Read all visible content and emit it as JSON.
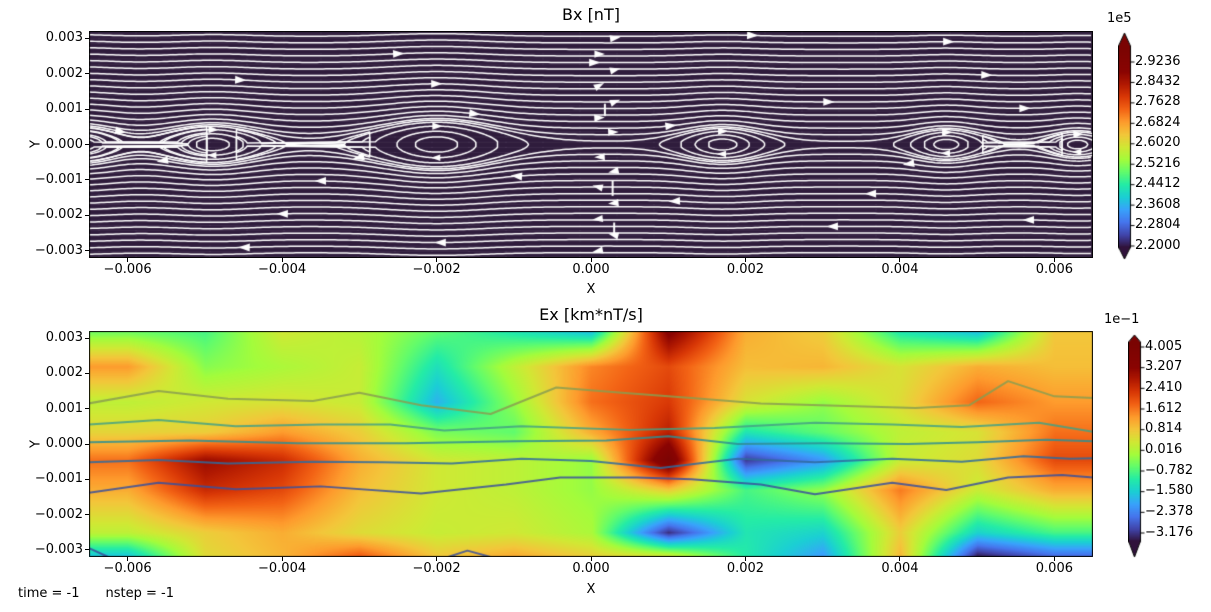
{
  "figure": {
    "background": "#ffffff"
  },
  "footer": {
    "time_label": "time = -1",
    "nstep_label": "nstep = -1"
  },
  "panels": [
    {
      "id": "bx",
      "title": "Bx [nT]",
      "xlabel": "X",
      "ylabel": "Y",
      "xtick_labels": [
        "−0.006",
        "−0.004",
        "−0.002",
        "0.000",
        "0.002",
        "0.004",
        "0.006"
      ],
      "ytick_labels": [
        "0.003",
        "0.002",
        "0.001",
        "0.000",
        "−0.001",
        "−0.002",
        "−0.003"
      ],
      "colorbar": {
        "exponent": "1e5",
        "tick_labels": [
          "2.9236",
          "2.8432",
          "2.7628",
          "2.6824",
          "2.6020",
          "2.5216",
          "2.4412",
          "2.3608",
          "2.2804",
          "2.2000"
        ],
        "extend": "both"
      }
    },
    {
      "id": "ex",
      "title": "Ex [km*nT/s]",
      "xlabel": "X",
      "ylabel": "Y",
      "xtick_labels": [
        "−0.006",
        "−0.004",
        "−0.002",
        "0.000",
        "0.002",
        "0.004",
        "0.006"
      ],
      "ytick_labels": [
        "0.003",
        "0.002",
        "0.001",
        "0.000",
        "−0.001",
        "−0.002",
        "−0.003"
      ],
      "colorbar": {
        "exponent": "1e−1",
        "tick_labels": [
          "4.005",
          "3.207",
          "2.410",
          "1.612",
          "0.814",
          "0.016",
          "−0.782",
          "−1.580",
          "−2.378",
          "−3.176"
        ],
        "extend": "both"
      }
    }
  ],
  "chart_data": [
    {
      "type": "streamline",
      "title": "Bx [nT]",
      "xlabel": "X",
      "ylabel": "Y",
      "xlim": [
        -0.0065,
        0.0065
      ],
      "ylim": [
        -0.0032,
        0.0032
      ],
      "xticks": [
        -0.006,
        -0.004,
        -0.002,
        0.0,
        0.002,
        0.004,
        0.006
      ],
      "yticks": [
        0.003,
        0.002,
        0.001,
        0.0,
        -0.001,
        -0.002,
        -0.003
      ],
      "colorbar": {
        "scale": "1e5",
        "ticks": [
          2.9236,
          2.8432,
          2.7628,
          2.6824,
          2.602,
          2.5216,
          2.4412,
          2.3608,
          2.2804,
          2.2
        ],
        "cmap": "turbo",
        "extend": "both"
      },
      "background_color": "#2f1c3c",
      "line_color": "#ffffff",
      "description": "Harris-sheet magnetic island chain along y=0; field lines horizontal far from the sheet, arrows point +x above the sheet and -x below; vertical chain of arrow artifacts near x=0.0002",
      "islands_units": "data (axis) units",
      "islands": [
        {
          "x": -0.0066,
          "half_width": 0.0012,
          "half_height": 0.00052
        },
        {
          "x": -0.0049,
          "half_width": 0.0015,
          "half_height": 0.00055
        },
        {
          "x": -0.002,
          "half_width": 0.0019,
          "half_height": 0.00068
        },
        {
          "x": 0.0017,
          "half_width": 0.0013,
          "half_height": 0.00049
        },
        {
          "x": 0.0046,
          "half_width": 0.0011,
          "half_height": 0.00045
        },
        {
          "x": 0.0063,
          "half_width": 0.0009,
          "half_height": 0.00038
        }
      ]
    },
    {
      "type": "heatmap",
      "title": "Ex [km*nT/s]",
      "xlabel": "X",
      "ylabel": "Y",
      "xlim": [
        -0.0065,
        0.0065
      ],
      "ylim": [
        -0.0032,
        0.0032
      ],
      "xticks": [
        -0.006,
        -0.004,
        -0.002,
        0.0,
        0.002,
        0.004,
        0.006
      ],
      "yticks": [
        0.003,
        0.002,
        0.001,
        0.0,
        -0.001,
        -0.002,
        -0.003
      ],
      "colorbar": {
        "scale": "1e-1",
        "ticks": [
          4.005,
          3.207,
          2.41,
          1.612,
          0.814,
          0.016,
          -0.782,
          -1.58,
          -2.378,
          -3.176
        ],
        "cmap": "turbo",
        "extend": "both"
      },
      "value_units": "1e-1 km*nT/s",
      "vmin": -3.575,
      "vmax": 4.404,
      "grid_units": "1e-3 (axis units x1000)",
      "grid_x": [
        -6,
        -5,
        -4,
        -3,
        -2,
        -1,
        0,
        1,
        2,
        3,
        4,
        5,
        6
      ],
      "grid_y": [
        3.2,
        2.2,
        1.2,
        0.35,
        -0.45,
        -1.3,
        -2.5,
        -3.2
      ],
      "values": [
        [
          -0.5,
          -0.8,
          0.4,
          0.1,
          -0.6,
          -1.2,
          -1.8,
          3.6,
          1.2,
          0.8,
          -1.2,
          -1.8,
          0.9
        ],
        [
          1.4,
          -0.3,
          0.0,
          0.3,
          -1.3,
          0.2,
          1.6,
          2.2,
          1.0,
          1.1,
          0.5,
          1.2,
          1.0
        ],
        [
          0.2,
          0.4,
          0.5,
          0.3,
          -1.9,
          -0.2,
          1.8,
          2.4,
          0.5,
          -0.2,
          0.6,
          1.9,
          1.4
        ],
        [
          0.7,
          0.8,
          1.4,
          0.8,
          -0.4,
          -0.6,
          1.2,
          2.8,
          -1.2,
          -0.6,
          0.2,
          0.5,
          1.8
        ],
        [
          1.8,
          3.2,
          2.6,
          1.2,
          0.4,
          0.2,
          -0.2,
          4.3,
          -3.2,
          -2.2,
          0.3,
          0.6,
          2.2
        ],
        [
          1.2,
          2.6,
          2.2,
          1.0,
          0.4,
          0.2,
          -0.2,
          0.8,
          -0.8,
          -0.2,
          1.7,
          0.3,
          1.2
        ],
        [
          0.2,
          0.8,
          1.2,
          0.6,
          0.3,
          0.4,
          0.0,
          -3.3,
          -1.2,
          -1.5,
          0.8,
          -1.5,
          -0.8
        ],
        [
          -1.8,
          0.6,
          1.1,
          2.1,
          0.9,
          1.3,
          0.8,
          0.6,
          -1.1,
          -2.2,
          1.1,
          -3.6,
          -2.8
        ]
      ],
      "contours_units": "1e-3 (axis units x1000)",
      "contours": [
        {
          "color": "#8a9e50",
          "closed": false,
          "points": [
            [
              -6.5,
              1.15
            ],
            [
              -5.6,
              1.5
            ],
            [
              -4.7,
              1.28
            ],
            [
              -3.6,
              1.22
            ],
            [
              -3.0,
              1.45
            ],
            [
              -2.2,
              1.1
            ],
            [
              -1.3,
              0.85
            ],
            [
              -0.45,
              1.6
            ],
            [
              0.4,
              1.45
            ],
            [
              1.3,
              1.3
            ],
            [
              2.2,
              1.15
            ],
            [
              3.2,
              1.08
            ],
            [
              4.2,
              1.02
            ],
            [
              4.9,
              1.1
            ],
            [
              5.4,
              1.78
            ],
            [
              6.0,
              1.35
            ],
            [
              6.5,
              1.3
            ]
          ]
        },
        {
          "color": "#44a184",
          "closed": false,
          "points": [
            [
              -6.5,
              0.55
            ],
            [
              -5.6,
              0.68
            ],
            [
              -4.6,
              0.5
            ],
            [
              -3.5,
              0.55
            ],
            [
              -2.6,
              0.55
            ],
            [
              -1.9,
              0.38
            ],
            [
              -0.9,
              0.5
            ],
            [
              0.5,
              0.4
            ],
            [
              1.6,
              0.45
            ],
            [
              2.9,
              0.6
            ],
            [
              3.9,
              0.55
            ],
            [
              4.8,
              0.48
            ],
            [
              5.8,
              0.6
            ],
            [
              6.5,
              0.35
            ]
          ]
        },
        {
          "color": "#2f8e92",
          "closed": false,
          "points": [
            [
              -6.5,
              0.05
            ],
            [
              -5.2,
              0.1
            ],
            [
              -3.8,
              0.02
            ],
            [
              -2.4,
              0.02
            ],
            [
              -1.0,
              0.08
            ],
            [
              0.2,
              0.1
            ],
            [
              1.0,
              0.22
            ],
            [
              1.9,
              0.0
            ],
            [
              3.0,
              0.02
            ],
            [
              4.1,
              0.0
            ],
            [
              5.0,
              0.05
            ],
            [
              5.9,
              0.12
            ],
            [
              6.5,
              0.08
            ]
          ]
        },
        {
          "color": "#2f6b9d",
          "closed": false,
          "points": [
            [
              -6.5,
              -0.52
            ],
            [
              -5.6,
              -0.45
            ],
            [
              -4.7,
              -0.55
            ],
            [
              -3.6,
              -0.5
            ],
            [
              -2.7,
              -0.52
            ],
            [
              -1.8,
              -0.55
            ],
            [
              -0.9,
              -0.42
            ],
            [
              0.0,
              -0.48
            ],
            [
              0.9,
              -0.68
            ],
            [
              1.9,
              -0.42
            ],
            [
              2.9,
              -0.52
            ],
            [
              3.9,
              -0.42
            ],
            [
              4.8,
              -0.5
            ],
            [
              5.6,
              -0.35
            ],
            [
              6.2,
              -0.42
            ],
            [
              6.5,
              -0.4
            ]
          ]
        },
        {
          "color": "#3a509c",
          "closed": false,
          "points": [
            [
              -6.5,
              -1.38
            ],
            [
              -5.6,
              -1.1
            ],
            [
              -4.6,
              -1.28
            ],
            [
              -3.5,
              -1.2
            ],
            [
              -2.2,
              -1.4
            ],
            [
              -1.1,
              -1.15
            ],
            [
              -0.4,
              -0.95
            ],
            [
              0.6,
              -0.95
            ],
            [
              1.3,
              -1.0
            ],
            [
              2.2,
              -1.15
            ],
            [
              2.9,
              -1.42
            ],
            [
              3.9,
              -1.1
            ],
            [
              4.6,
              -1.3
            ],
            [
              5.4,
              -0.95
            ],
            [
              6.1,
              -0.88
            ],
            [
              6.5,
              -0.95
            ]
          ]
        },
        {
          "color": "#3a509c",
          "closed": false,
          "points": [
            [
              -1.85,
              -3.2
            ],
            [
              -1.6,
              -3.02
            ],
            [
              -1.3,
              -3.2
            ]
          ]
        },
        {
          "color": "#3a509c",
          "closed": false,
          "points": [
            [
              -6.5,
              -2.95
            ],
            [
              -6.25,
              -3.2
            ]
          ]
        }
      ]
    }
  ],
  "colors": {
    "streamline_bg": "#2f1c3c",
    "streamline_line": "#ffffff",
    "axis_text": "#000000",
    "turbo_stops": [
      [
        0.0,
        "#30123b"
      ],
      [
        0.0625,
        "#4145ab"
      ],
      [
        0.125,
        "#4675ed"
      ],
      [
        0.1875,
        "#39a2fc"
      ],
      [
        0.25,
        "#1bcfd4"
      ],
      [
        0.3125,
        "#24eca6"
      ],
      [
        0.375,
        "#61fc6c"
      ],
      [
        0.4375,
        "#a4fc3b"
      ],
      [
        0.5,
        "#d1e834"
      ],
      [
        0.5625,
        "#f3c63a"
      ],
      [
        0.625,
        "#fe9b2d"
      ],
      [
        0.6875,
        "#f36315"
      ],
      [
        0.75,
        "#d93806"
      ],
      [
        0.8125,
        "#b11901"
      ],
      [
        0.875,
        "#8a0402"
      ],
      [
        1.0,
        "#7a0403"
      ]
    ]
  }
}
